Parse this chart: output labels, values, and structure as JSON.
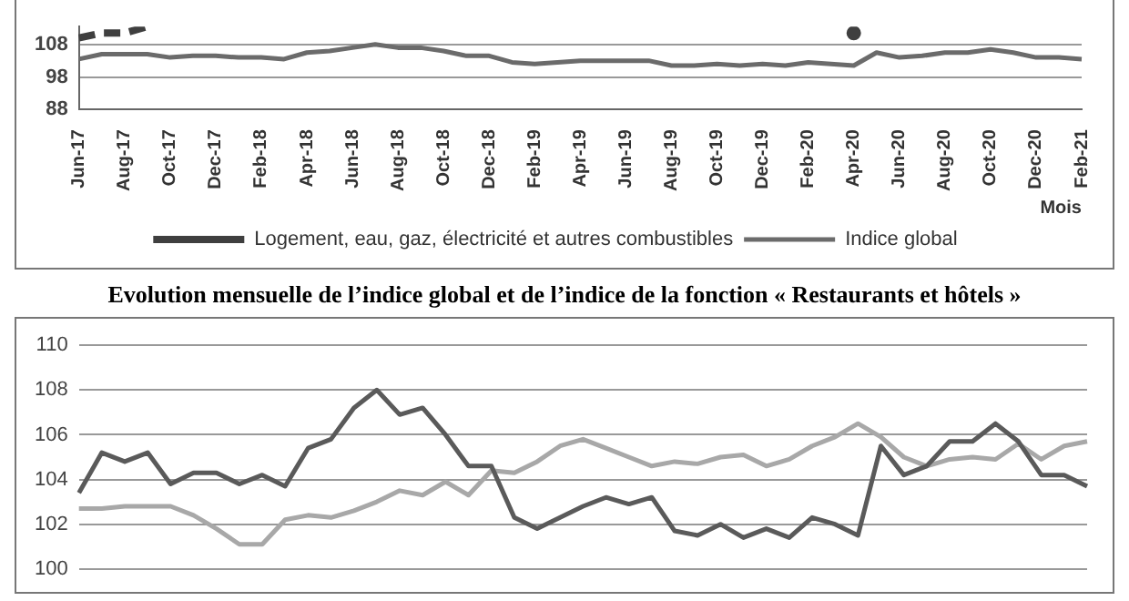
{
  "chart_data": [
    {
      "type": "line",
      "categories": [
        "Jun-17",
        null,
        "Aug-17",
        null,
        "Oct-17",
        null,
        "Dec-17",
        null,
        "Feb-18",
        null,
        "Apr-18",
        null,
        "Jun-18",
        null,
        "Aug-18",
        null,
        "Oct-18",
        null,
        "Dec-18",
        null,
        "Feb-19",
        null,
        "Apr-19",
        null,
        "Jun-19",
        null,
        "Aug-19",
        null,
        "Oct-19",
        null,
        "Dec-19",
        null,
        "Feb-20",
        null,
        "Apr-20",
        null,
        "Jun-20",
        null,
        "Aug-20",
        null,
        "Oct-20",
        null,
        "Dec-20",
        null,
        "Feb-21"
      ],
      "xlabel": "Mois",
      "ylim": [
        88,
        113.5
      ],
      "yticks": [
        88,
        98,
        108
      ],
      "grid": "y",
      "legend": "bottom",
      "marker": "none",
      "series": [
        {
          "name": "Logement, eau, gaz, électricité et autres combustibles",
          "color": "#3f3f3f",
          "line_style": "dashed",
          "values": [
            110,
            111.5,
            111.5,
            113.5,
            null,
            null,
            null,
            null,
            null,
            null,
            null,
            null,
            null,
            null,
            null,
            null,
            null,
            null,
            null,
            null,
            null,
            null,
            null,
            null,
            null,
            null,
            null,
            null,
            null,
            null,
            null,
            null,
            null,
            null,
            111.5,
            null,
            null,
            null,
            null,
            null,
            null,
            null,
            null,
            null,
            null
          ]
        },
        {
          "name": "Indice global",
          "color": "#6b6b6b",
          "line_style": "solid",
          "values": [
            103.5,
            105,
            105,
            105,
            104,
            104.5,
            104.5,
            104,
            104,
            103.5,
            105.5,
            106,
            107,
            108,
            107,
            107,
            106,
            104.5,
            104.5,
            102.5,
            102,
            102.5,
            103,
            103,
            103,
            103,
            101.5,
            101.5,
            102,
            101.5,
            102,
            101.5,
            102.5,
            102,
            101.5,
            105.5,
            104,
            104.5,
            105.5,
            105.5,
            106.5,
            105.5,
            104,
            104,
            103.5
          ]
        }
      ]
    },
    {
      "type": "line",
      "title": "Evolution mensuelle de l’indice global et de l’indice de la fonction « Restaurants et hôtels »",
      "categories": [
        null,
        null,
        null,
        null,
        null,
        null,
        null,
        null,
        null,
        null,
        null,
        null,
        null,
        null,
        null,
        null,
        null,
        null,
        null,
        null,
        null,
        null,
        null,
        null,
        null,
        null,
        null,
        null,
        null,
        null,
        null,
        null,
        null,
        null,
        null,
        null,
        null,
        null,
        null,
        null,
        null,
        null,
        null,
        null,
        null
      ],
      "ylim": [
        100,
        110
      ],
      "yticks": [
        100,
        102,
        104,
        106,
        108,
        110
      ],
      "grid": "y",
      "tick_labels": "y",
      "marker": "none",
      "series": [
        {
          "color": "#5a5a5a",
          "values": [
            103.4,
            105.2,
            104.8,
            105.2,
            103.8,
            104.3,
            104.3,
            103.8,
            104.2,
            103.7,
            105.4,
            105.8,
            107.2,
            108,
            106.9,
            107.2,
            106.0,
            104.6,
            104.6,
            102.3,
            101.8,
            102.3,
            102.8,
            103.2,
            102.9,
            103.2,
            101.7,
            101.5,
            102.0,
            101.4,
            101.8,
            101.4,
            102.3,
            102.0,
            101.5,
            105.5,
            104.2,
            104.6,
            105.7,
            105.7,
            106.5,
            105.7,
            104.2,
            104.2,
            103.7
          ]
        },
        {
          "color": "#a8a8a8",
          "values": [
            102.7,
            102.7,
            102.8,
            102.8,
            102.8,
            102.4,
            101.8,
            101.1,
            101.1,
            102.2,
            102.4,
            102.3,
            102.6,
            103.0,
            103.5,
            103.3,
            103.9,
            103.3,
            104.4,
            104.3,
            104.8,
            105.5,
            105.8,
            105.4,
            105.0,
            104.6,
            104.8,
            104.7,
            105.0,
            105.1,
            104.6,
            104.9,
            105.5,
            105.9,
            106.5,
            105.9,
            105.0,
            104.6,
            104.9,
            105.0,
            104.9,
            105.6,
            104.9,
            105.5,
            105.7
          ]
        }
      ]
    }
  ]
}
